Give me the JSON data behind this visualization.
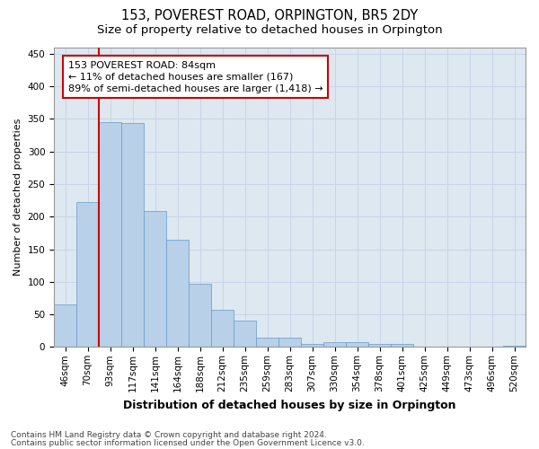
{
  "title": "153, POVEREST ROAD, ORPINGTON, BR5 2DY",
  "subtitle": "Size of property relative to detached houses in Orpington",
  "xlabel": "Distribution of detached houses by size in Orpington",
  "ylabel": "Number of detached properties",
  "categories": [
    "46sqm",
    "70sqm",
    "93sqm",
    "117sqm",
    "141sqm",
    "164sqm",
    "188sqm",
    "212sqm",
    "235sqm",
    "259sqm",
    "283sqm",
    "307sqm",
    "330sqm",
    "354sqm",
    "378sqm",
    "401sqm",
    "425sqm",
    "449sqm",
    "473sqm",
    "496sqm",
    "520sqm"
  ],
  "values": [
    65,
    222,
    345,
    344,
    208,
    165,
    97,
    57,
    40,
    15,
    15,
    5,
    7,
    7,
    5,
    4,
    0,
    0,
    0,
    0,
    2
  ],
  "bar_color": "#b8d0e8",
  "bar_edge_color": "#6699cc",
  "subject_line_color": "#cc0000",
  "subject_line_index": 2,
  "annotation_line1": "153 POVEREST ROAD: 84sqm",
  "annotation_line2": "← 11% of detached houses are smaller (167)",
  "annotation_line3": "89% of semi-detached houses are larger (1,418) →",
  "annotation_box_color": "#ffffff",
  "annotation_box_edge_color": "#cc0000",
  "ylim": [
    0,
    460
  ],
  "yticks": [
    0,
    50,
    100,
    150,
    200,
    250,
    300,
    350,
    400,
    450
  ],
  "grid_color": "#c8d4e8",
  "bg_color": "#dde8f0",
  "footer_line1": "Contains HM Land Registry data © Crown copyright and database right 2024.",
  "footer_line2": "Contains public sector information licensed under the Open Government Licence v3.0.",
  "title_fontsize": 10.5,
  "subtitle_fontsize": 9.5,
  "xlabel_fontsize": 9,
  "ylabel_fontsize": 8,
  "tick_fontsize": 7.5,
  "annotation_fontsize": 8,
  "footer_fontsize": 6.5
}
